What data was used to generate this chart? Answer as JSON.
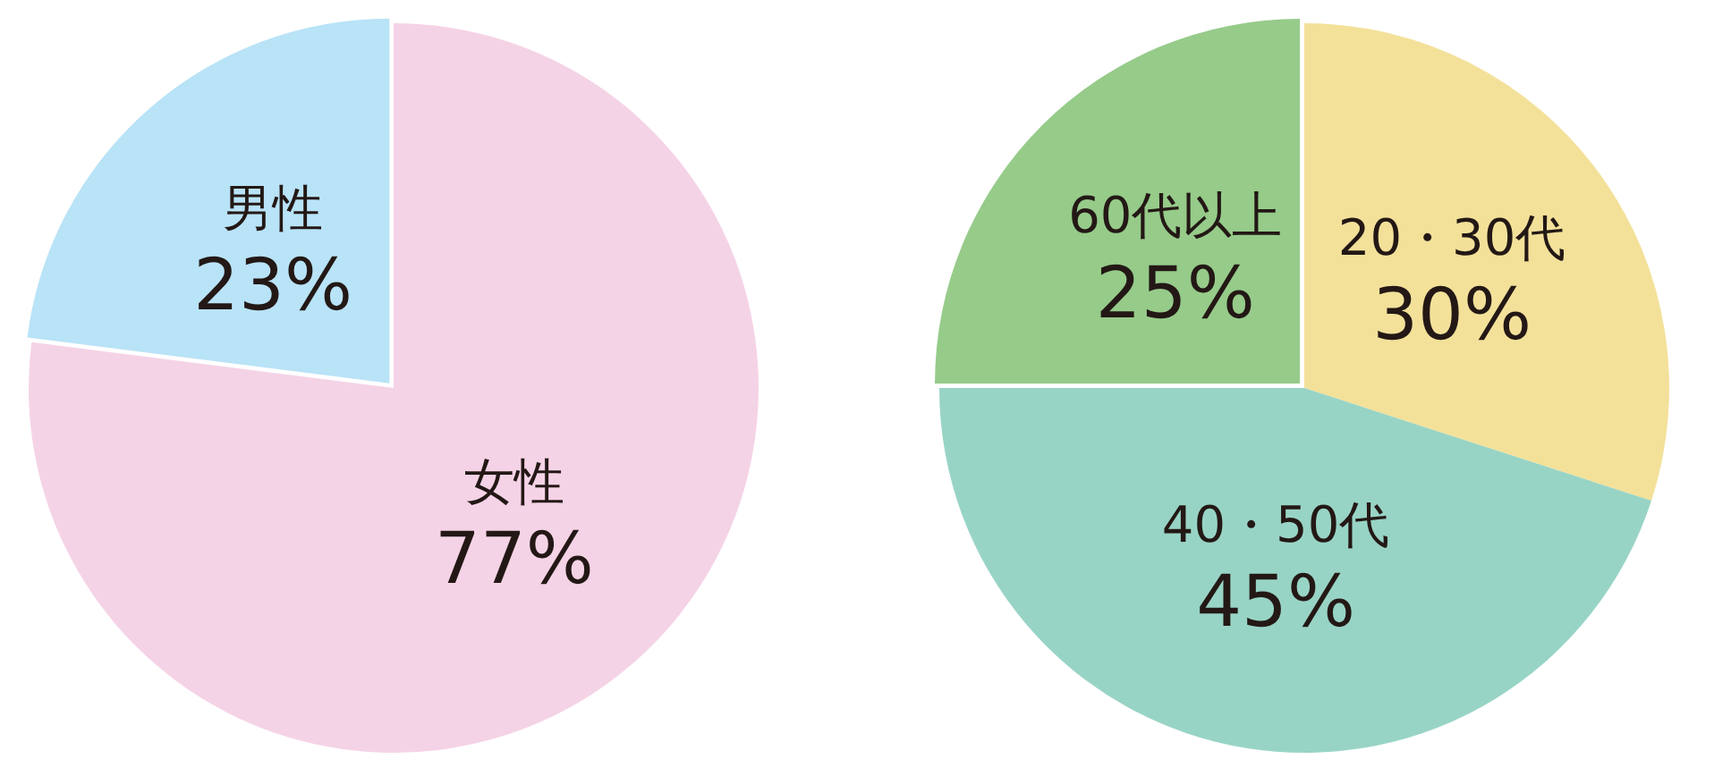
{
  "chart_data": [
    {
      "type": "pie",
      "categories": [
        "女性",
        "男性"
      ],
      "values": [
        77,
        23
      ],
      "value_labels": [
        "77%",
        "23%"
      ],
      "colors": [
        "#f5d3e6",
        "#b9e3f7"
      ],
      "legend": false
    },
    {
      "type": "pie",
      "categories": [
        "20・30代",
        "40・50代",
        "60代以上"
      ],
      "values": [
        30,
        45,
        25
      ],
      "value_labels": [
        "30%",
        "45%",
        "25%"
      ],
      "colors": [
        "#f3e19a",
        "#98d4c5",
        "#96cb8a"
      ],
      "legend": false
    }
  ]
}
